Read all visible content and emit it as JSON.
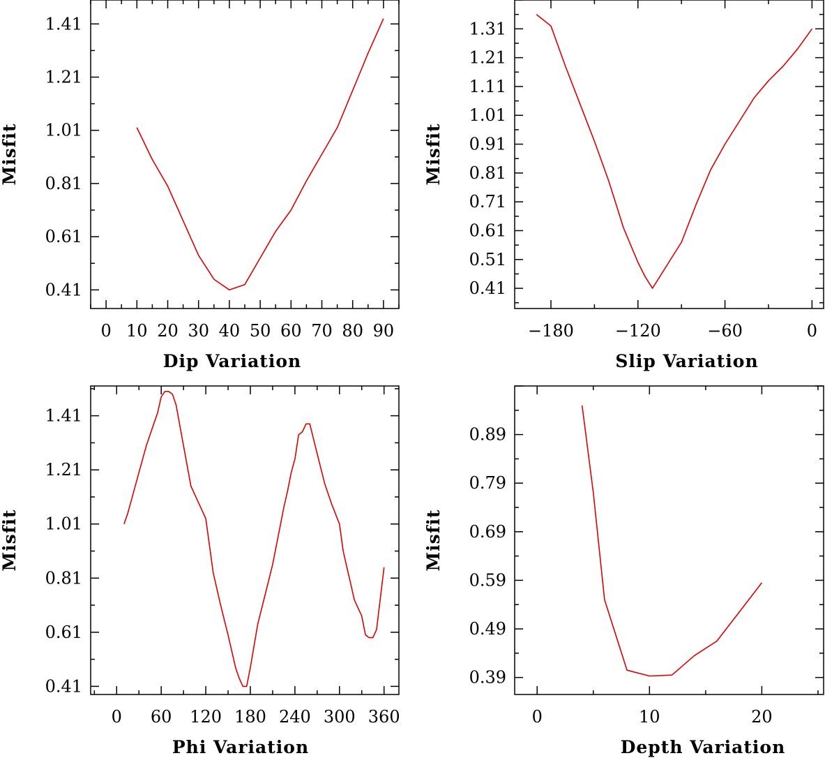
{
  "chart_data": [
    {
      "type": "line",
      "xlabel": "Dip    Variation",
      "ylabel": "Misfit",
      "xlim": [
        -5,
        95
      ],
      "ylim": [
        0.34,
        1.5
      ],
      "xticks": [
        "0",
        "10",
        "20",
        "30",
        "40",
        "50",
        "60",
        "70",
        "80",
        "90"
      ],
      "yticks": [
        "0.41",
        "0.61",
        "0.81",
        "1.01",
        "1.21",
        "1.41"
      ],
      "series": [
        {
          "name": "misfit",
          "color": "#dd0000",
          "x": [
            10,
            15,
            20,
            25,
            30,
            35,
            40,
            45,
            50,
            55,
            60,
            65,
            70,
            75,
            80,
            85,
            90
          ],
          "values": [
            1.02,
            0.9,
            0.8,
            0.67,
            0.54,
            0.45,
            0.41,
            0.43,
            0.53,
            0.63,
            0.71,
            0.82,
            0.92,
            1.02,
            1.16,
            1.3,
            1.43
          ]
        }
      ]
    },
    {
      "type": "line",
      "xlabel": "Slip   Variation",
      "ylabel": "Misfit",
      "xlim": [
        -205,
        8
      ],
      "ylim": [
        0.34,
        1.41
      ],
      "xticks": [
        "−180",
        "−120",
        "−60",
        "0"
      ],
      "yticks": [
        "0.41",
        "0.51",
        "0.61",
        "0.71",
        "0.81",
        "0.91",
        "1.01",
        "1.11",
        "1.21",
        "1.31"
      ],
      "series": [
        {
          "name": "misfit",
          "color": "#dd0000",
          "x": [
            -190,
            -185,
            -180,
            -170,
            -160,
            -150,
            -140,
            -130,
            -120,
            -115,
            -110,
            -105,
            -100,
            -90,
            -80,
            -70,
            -60,
            -50,
            -40,
            -30,
            -20,
            -10,
            0
          ],
          "values": [
            1.36,
            1.34,
            1.32,
            1.18,
            1.05,
            0.92,
            0.78,
            0.62,
            0.5,
            0.45,
            0.41,
            0.45,
            0.49,
            0.57,
            0.7,
            0.82,
            0.91,
            0.99,
            1.07,
            1.13,
            1.18,
            1.24,
            1.31
          ]
        }
      ]
    },
    {
      "type": "line",
      "xlabel": "Phi    Variation",
      "ylabel": "Misfit",
      "xlim": [
        -35,
        380
      ],
      "ylim": [
        0.38,
        1.52
      ],
      "xticks": [
        "0",
        "60",
        "120",
        "180",
        "240",
        "300",
        "360"
      ],
      "yticks": [
        "0.41",
        "0.61",
        "0.81",
        "1.01",
        "1.21",
        "1.41"
      ],
      "series": [
        {
          "name": "misfit",
          "color": "#dd0000",
          "x": [
            10,
            15,
            20,
            30,
            40,
            50,
            55,
            60,
            65,
            70,
            75,
            80,
            90,
            100,
            110,
            120,
            130,
            140,
            150,
            155,
            160,
            165,
            170,
            175,
            180,
            190,
            200,
            210,
            220,
            225,
            230,
            235,
            240,
            245,
            250,
            255,
            260,
            270,
            280,
            290,
            300,
            305,
            310,
            315,
            320,
            330,
            335,
            340,
            345,
            350,
            360
          ],
          "values": [
            1.01,
            1.05,
            1.1,
            1.2,
            1.3,
            1.38,
            1.42,
            1.48,
            1.5,
            1.5,
            1.49,
            1.45,
            1.3,
            1.15,
            1.09,
            1.03,
            0.83,
            0.71,
            0.6,
            0.54,
            0.48,
            0.44,
            0.41,
            0.41,
            0.48,
            0.64,
            0.75,
            0.86,
            1.0,
            1.07,
            1.13,
            1.2,
            1.25,
            1.34,
            1.35,
            1.38,
            1.38,
            1.27,
            1.16,
            1.08,
            1.01,
            0.91,
            0.85,
            0.79,
            0.73,
            0.67,
            0.6,
            0.59,
            0.59,
            0.62,
            0.85
          ]
        }
      ]
    },
    {
      "type": "line",
      "xlabel": "Depth  Variation",
      "ylabel": "Misfit",
      "xlim": [
        -2,
        25.5
      ],
      "ylim": [
        0.355,
        0.99
      ],
      "xticks": [
        "0",
        "10",
        "20"
      ],
      "yticks": [
        "0.39",
        "0.49",
        "0.59",
        "0.69",
        "0.79",
        "0.89"
      ],
      "series": [
        {
          "name": "misfit",
          "color": "#dd0000",
          "x": [
            4,
            5,
            6,
            8,
            10,
            12,
            14,
            16,
            18,
            20
          ],
          "values": [
            0.95,
            0.77,
            0.55,
            0.405,
            0.393,
            0.395,
            0.435,
            0.465,
            0.525,
            0.585
          ]
        }
      ]
    }
  ]
}
